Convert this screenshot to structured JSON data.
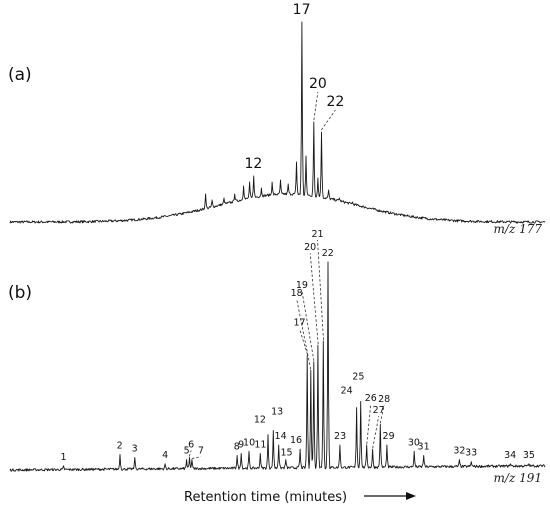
{
  "chart_data": [
    {
      "type": "line",
      "panel_label": "(a)",
      "ion_label": "m/z 177",
      "xlabel": "Retention time (minutes)",
      "ylabel": "",
      "grid": false,
      "baseline_hump": {
        "center": 0.52,
        "height": 0.14,
        "width": 0.18
      },
      "peaks": [
        {
          "label": "12",
          "x": 0.455,
          "y": 0.23
        },
        {
          "label": "17",
          "x": 0.545,
          "y": 1.0
        },
        {
          "label": "20",
          "x": 0.568,
          "y": 0.5
        },
        {
          "label": "22",
          "x": 0.582,
          "y": 0.45
        }
      ],
      "minor_peaks": [
        {
          "x": 0.365,
          "y": 0.14
        },
        {
          "x": 0.378,
          "y": 0.11
        },
        {
          "x": 0.4,
          "y": 0.12
        },
        {
          "x": 0.42,
          "y": 0.14
        },
        {
          "x": 0.437,
          "y": 0.18
        },
        {
          "x": 0.448,
          "y": 0.2
        },
        {
          "x": 0.47,
          "y": 0.17
        },
        {
          "x": 0.49,
          "y": 0.2
        },
        {
          "x": 0.505,
          "y": 0.21
        },
        {
          "x": 0.52,
          "y": 0.19
        },
        {
          "x": 0.535,
          "y": 0.3
        },
        {
          "x": 0.553,
          "y": 0.33
        },
        {
          "x": 0.575,
          "y": 0.22
        },
        {
          "x": 0.595,
          "y": 0.16
        },
        {
          "x": 0.615,
          "y": 0.12
        },
        {
          "x": 0.64,
          "y": 0.1
        },
        {
          "x": 0.66,
          "y": 0.06
        },
        {
          "x": 0.69,
          "y": 0.05
        }
      ]
    },
    {
      "type": "line",
      "panel_label": "(b)",
      "ion_label": "m/z 191",
      "xlabel": "Retention time (minutes)",
      "ylabel": "",
      "grid": false,
      "peaks": [
        {
          "label": "1",
          "x": 0.1,
          "y": 0.02
        },
        {
          "label": "2",
          "x": 0.205,
          "y": 0.075
        },
        {
          "label": "3",
          "x": 0.233,
          "y": 0.06
        },
        {
          "label": "4",
          "x": 0.29,
          "y": 0.03
        },
        {
          "label": "5",
          "x": 0.33,
          "y": 0.05
        },
        {
          "label": "6",
          "x": 0.335,
          "y": 0.06
        },
        {
          "label": "7",
          "x": 0.34,
          "y": 0.05
        },
        {
          "label": "8",
          "x": 0.424,
          "y": 0.07
        },
        {
          "label": "9",
          "x": 0.432,
          "y": 0.08
        },
        {
          "label": "10",
          "x": 0.447,
          "y": 0.09
        },
        {
          "label": "11",
          "x": 0.468,
          "y": 0.08
        },
        {
          "label": "12",
          "x": 0.482,
          "y": 0.17
        },
        {
          "label": "13",
          "x": 0.492,
          "y": 0.19
        },
        {
          "label": "14",
          "x": 0.502,
          "y": 0.12
        },
        {
          "label": "15",
          "x": 0.515,
          "y": 0.05
        },
        {
          "label": "16",
          "x": 0.542,
          "y": 0.1
        },
        {
          "label": "17",
          "x": 0.556,
          "y": 0.55
        },
        {
          "label": "18",
          "x": 0.562,
          "y": 0.48
        },
        {
          "label": "19",
          "x": 0.568,
          "y": 0.52
        },
        {
          "label": "20",
          "x": 0.576,
          "y": 0.6
        },
        {
          "label": "21",
          "x": 0.586,
          "y": 0.62
        },
        {
          "label": "22",
          "x": 0.594,
          "y": 1.0
        },
        {
          "label": "23",
          "x": 0.617,
          "y": 0.12
        },
        {
          "label": "24",
          "x": 0.648,
          "y": 0.3
        },
        {
          "label": "25",
          "x": 0.655,
          "y": 0.33
        },
        {
          "label": "26",
          "x": 0.667,
          "y": 0.12
        },
        {
          "label": "27",
          "x": 0.678,
          "y": 0.1
        },
        {
          "label": "28",
          "x": 0.692,
          "y": 0.22
        },
        {
          "label": "29",
          "x": 0.704,
          "y": 0.12
        },
        {
          "label": "30",
          "x": 0.755,
          "y": 0.09
        },
        {
          "label": "31",
          "x": 0.773,
          "y": 0.07
        },
        {
          "label": "32",
          "x": 0.84,
          "y": 0.05
        },
        {
          "label": "33",
          "x": 0.862,
          "y": 0.04
        },
        {
          "label": "34",
          "x": 0.935,
          "y": 0.03
        },
        {
          "label": "35",
          "x": 0.97,
          "y": 0.03
        }
      ]
    }
  ]
}
